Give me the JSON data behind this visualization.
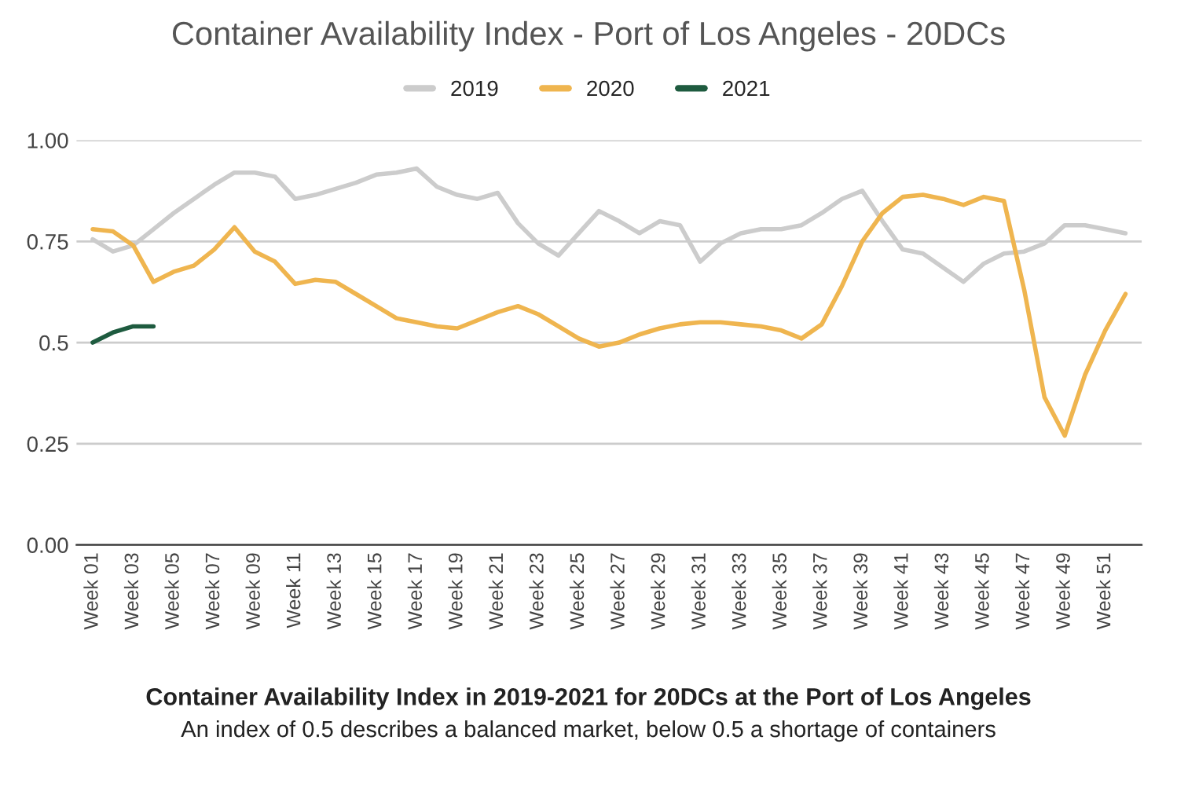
{
  "chart_data": {
    "type": "line",
    "title": "Container Availability Index - Port of Los Angeles - 20DCs",
    "categories": [
      "Week 01",
      null,
      "Week 03",
      null,
      "Week 05",
      null,
      "Week 07",
      null,
      "Week 09",
      null,
      "Week 11",
      null,
      "Week 13",
      null,
      "Week 15",
      null,
      "Week 17",
      null,
      "Week 19",
      null,
      "Week 21",
      null,
      "Week 23",
      null,
      "Week 25",
      null,
      "Week 27",
      null,
      "Week 29",
      null,
      "Week 31",
      null,
      "Week 33",
      null,
      "Week 35",
      null,
      "Week 37",
      null,
      "Week 39",
      null,
      "Week 41",
      null,
      "Week 43",
      null,
      "Week 45",
      null,
      "Week 47",
      null,
      "Week 49",
      null,
      "Week 51",
      null
    ],
    "series": [
      {
        "name": "2019",
        "color": "#cccccc",
        "values": [
          0.755,
          0.725,
          0.74,
          0.78,
          0.82,
          0.855,
          0.89,
          0.92,
          0.92,
          0.91,
          0.855,
          0.865,
          0.88,
          0.895,
          0.915,
          0.92,
          0.93,
          0.885,
          0.865,
          0.855,
          0.87,
          0.795,
          0.745,
          0.715,
          0.77,
          0.825,
          0.8,
          0.77,
          0.8,
          0.79,
          0.7,
          0.745,
          0.77,
          0.78,
          0.78,
          0.79,
          0.82,
          0.855,
          0.875,
          0.8,
          0.73,
          0.72,
          0.685,
          0.65,
          0.695,
          0.72,
          0.725,
          0.745,
          0.79,
          0.79,
          0.78,
          0.77
        ]
      },
      {
        "name": "2020",
        "color": "#efb54f",
        "values": [
          0.78,
          0.775,
          0.74,
          0.65,
          0.675,
          0.69,
          0.73,
          0.785,
          0.725,
          0.7,
          0.645,
          0.655,
          0.65,
          0.62,
          0.59,
          0.56,
          0.55,
          0.54,
          0.535,
          0.555,
          0.575,
          0.59,
          0.57,
          0.54,
          0.51,
          0.49,
          0.5,
          0.52,
          0.535,
          0.545,
          0.55,
          0.55,
          0.545,
          0.54,
          0.53,
          0.51,
          0.545,
          0.64,
          0.75,
          0.82,
          0.86,
          0.865,
          0.855,
          0.84,
          0.86,
          0.85,
          0.63,
          0.365,
          0.27,
          0.42,
          0.53,
          0.62
        ]
      },
      {
        "name": "2021",
        "color": "#1e5b3f",
        "values": [
          0.5,
          0.525,
          0.54,
          0.54,
          null,
          null,
          null,
          null,
          null,
          null,
          null,
          null,
          null,
          null,
          null,
          null,
          null,
          null,
          null,
          null,
          null,
          null,
          null,
          null,
          null,
          null,
          null,
          null,
          null,
          null,
          null,
          null,
          null,
          null,
          null,
          null,
          null,
          null,
          null,
          null,
          null,
          null,
          null,
          null,
          null,
          null,
          null,
          null,
          null,
          null,
          null,
          null
        ]
      }
    ],
    "ylim": [
      0,
      1
    ],
    "yticks": [
      {
        "value": 0,
        "label": "0.00"
      },
      {
        "value": 0.25,
        "label": "0.25"
      },
      {
        "value": 0.5,
        "label": "0.5"
      },
      {
        "value": 0.75,
        "label": "0.75"
      },
      {
        "value": 1,
        "label": "1.00"
      }
    ],
    "grid": "y",
    "legend": "top",
    "marker": "none",
    "line_style": "solid",
    "annotations": [
      "Container Availability Index in 2019-2021 for 20DCs at the Port of Los Angeles",
      "An index of 0.5 describes a balanced market, below 0.5 a shortage of containers"
    ]
  }
}
